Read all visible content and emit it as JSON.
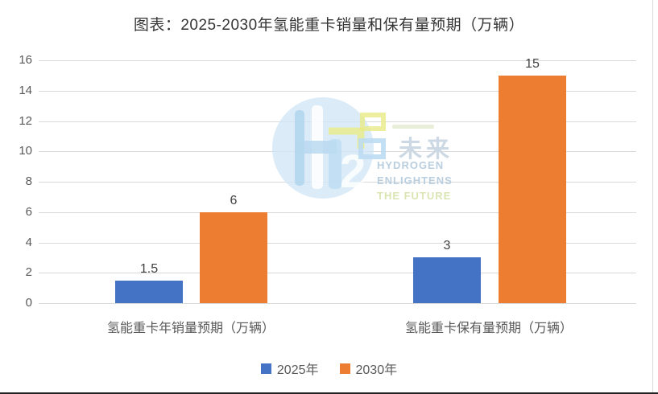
{
  "title": "图表：2025-2030年氢能重卡销量和保有量预期（万辆）",
  "chart_data": {
    "type": "bar",
    "categories": [
      "氢能重卡年销量预期（万辆）",
      "氢能重卡保有量预期（万辆）"
    ],
    "series": [
      {
        "name": "2025年",
        "color": "#4472C4",
        "values": [
          1.5,
          3
        ]
      },
      {
        "name": "2030年",
        "color": "#ED7D31",
        "values": [
          6,
          15
        ]
      }
    ],
    "title": "图表：2025-2030年氢能重卡销量和保有量预期（万辆）",
    "xlabel": "",
    "ylabel": "",
    "ylim": [
      0,
      16
    ],
    "yticks": [
      0,
      2,
      4,
      6,
      8,
      10,
      12,
      14,
      16
    ],
    "grid": "horizontal",
    "legend_position": "bottom",
    "value_labels_shown": true
  },
  "legend": {
    "items": [
      {
        "label": "2025年",
        "color": "#4472C4"
      },
      {
        "label": "2030年",
        "color": "#ED7D31"
      }
    ]
  },
  "watermark": {
    "cn_text": "未来",
    "en_line1": "HYDROGEN",
    "en_line2": "ENLIGHTENS",
    "en_line3": "THE FUTURE"
  },
  "colors": {
    "series_2025": "#4472C4",
    "series_2030": "#ED7D31",
    "gridline": "#d9d9d9",
    "axis_text": "#595959",
    "title_text": "#353535",
    "watermark_circle": "#cfe6f5"
  }
}
